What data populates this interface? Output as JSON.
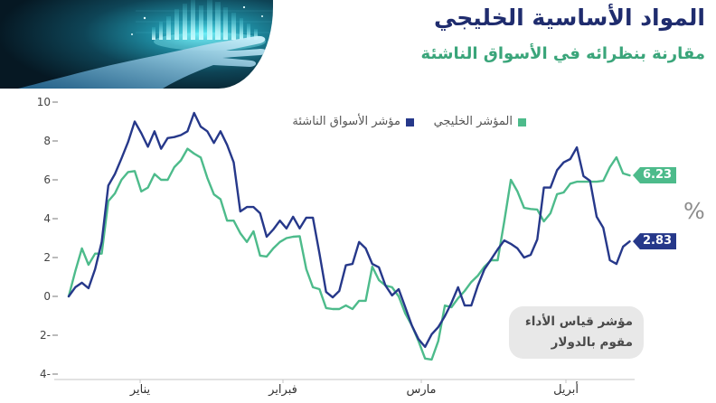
{
  "theme": {
    "title_color": "#1f2c6e",
    "subtitle_color": "#3aa57a"
  },
  "chart_data": {
    "type": "line",
    "title": "المواد الأساسية الخليجي",
    "subtitle": "مقارنة بنظرائه في الأسواق الناشئة",
    "ylabel": "%",
    "ylim": [
      -4,
      10
    ],
    "yticks": [
      10,
      8,
      6,
      4,
      2,
      0,
      -2,
      -4
    ],
    "ytick_labels": [
      "10",
      "8",
      "6",
      "4",
      "2",
      "0",
      "2-",
      "4-"
    ],
    "xtick_labels": [
      "يناير",
      "فبراير",
      "مارس",
      "أبريل"
    ],
    "grid": false,
    "legend": "top",
    "annotation": [
      "مؤشر قياس الأداء",
      "مقوم بالدولار"
    ],
    "series": [
      {
        "name": "المؤشر الخليجي",
        "color": "#4dbb8b",
        "end_label": "6.23",
        "values": [
          0,
          1.3,
          2.47,
          1.63,
          2.2,
          2.2,
          4.9,
          5.3,
          6.0,
          6.4,
          6.45,
          5.4,
          5.6,
          6.3,
          6.0,
          6.0,
          6.65,
          7.0,
          7.6,
          7.35,
          7.15,
          6.1,
          5.25,
          5.0,
          3.9,
          3.9,
          3.25,
          2.8,
          3.35,
          2.1,
          2.05,
          2.47,
          2.8,
          3.0,
          3.07,
          3.1,
          1.4,
          0.47,
          0.37,
          -0.6,
          -0.65,
          -0.65,
          -0.47,
          -0.65,
          -0.23,
          -0.23,
          1.53,
          0.84,
          0.56,
          0.47,
          0.0,
          -0.88,
          -1.5,
          -2.3,
          -3.2,
          -3.25,
          -2.3,
          -0.47,
          -0.56,
          -0.1,
          0.28,
          0.74,
          1.07,
          1.53,
          1.86,
          1.86,
          3.86,
          6.0,
          5.4,
          4.56,
          4.5,
          4.47,
          3.86,
          4.28,
          5.26,
          5.35,
          5.8,
          5.9,
          5.9,
          5.9,
          5.9,
          5.95,
          6.65,
          7.16,
          6.33,
          6.23
        ]
      },
      {
        "name": "مؤشر الأسواق الناشئة",
        "color": "#26388a",
        "end_label": "2.83",
        "values": [
          0,
          0.47,
          0.7,
          0.42,
          1.4,
          2.8,
          5.7,
          6.3,
          7.1,
          7.95,
          9.0,
          8.4,
          7.7,
          8.5,
          7.6,
          8.15,
          8.2,
          8.3,
          8.5,
          9.44,
          8.74,
          8.5,
          7.9,
          8.5,
          7.8,
          6.9,
          4.37,
          4.6,
          4.6,
          4.28,
          3.07,
          3.44,
          3.9,
          3.5,
          4.1,
          3.5,
          4.05,
          4.05,
          2.2,
          0.23,
          -0.05,
          0.28,
          1.6,
          1.67,
          2.8,
          2.47,
          1.67,
          1.5,
          0.56,
          0.05,
          0.37,
          -0.56,
          -1.5,
          -2.2,
          -2.6,
          -1.95,
          -1.58,
          -1.02,
          -0.33,
          0.47,
          -0.47,
          -0.47,
          0.56,
          1.4,
          1.9,
          2.42,
          2.88,
          2.7,
          2.47,
          2.0,
          2.14,
          2.93,
          5.6,
          5.6,
          6.5,
          6.9,
          7.07,
          7.67,
          6.19,
          5.95,
          4.1,
          3.53,
          1.86,
          1.67,
          2.56,
          2.83
        ]
      }
    ]
  }
}
